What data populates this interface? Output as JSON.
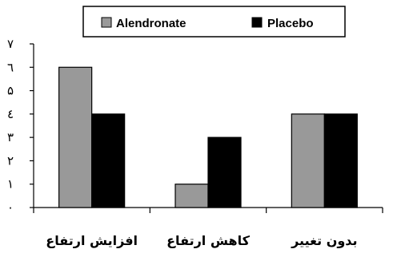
{
  "chart_data": {
    "type": "bar",
    "categories": [
      "افزایش ارتفاع",
      "کاهش ارتفاع",
      "بدون تغییر"
    ],
    "series": [
      {
        "name": "Alendronate",
        "values": [
          6,
          1,
          4
        ],
        "color": "#999999"
      },
      {
        "name": "Placebo",
        "values": [
          4,
          3,
          4
        ],
        "color": "#000000"
      }
    ],
    "yticks": [
      "۰",
      "۱",
      "۲",
      "۳",
      "٤",
      "۵",
      "٦",
      "۷"
    ],
    "ylim": [
      0,
      7
    ],
    "title": "",
    "xlabel": "",
    "ylabel": "",
    "legend": "top-center",
    "grid": false
  }
}
